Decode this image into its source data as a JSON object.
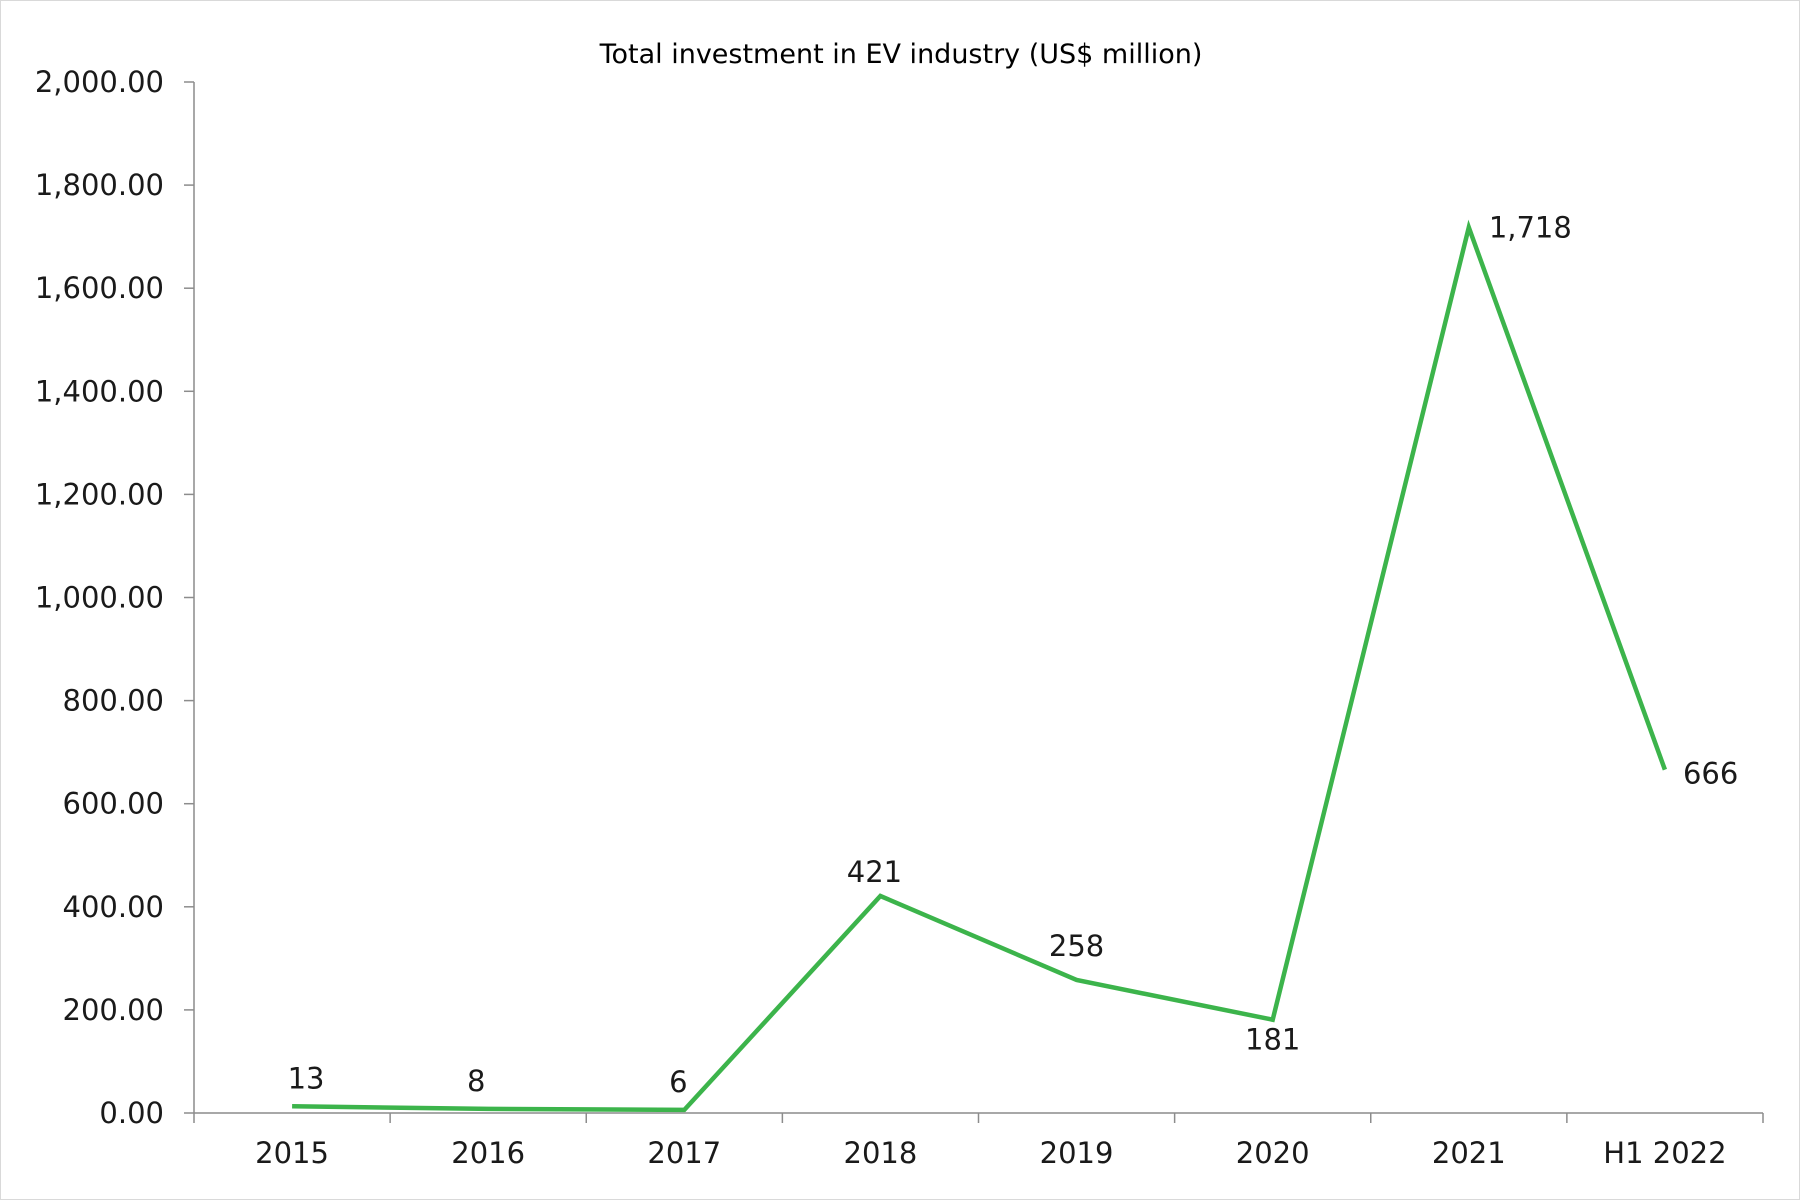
{
  "chart_data": {
    "type": "line",
    "title": "Total investment in EV industry (US$ million)",
    "xlabel": "",
    "ylabel": "",
    "categories": [
      "2015",
      "2016",
      "2017",
      "2018",
      "2019",
      "2020",
      "2021",
      "H1 2022"
    ],
    "series": [
      {
        "values": [
          13,
          8,
          6,
          421,
          258,
          181,
          1718,
          666
        ],
        "data_labels": [
          "13",
          "8",
          "6",
          "421",
          "258",
          "181",
          "1,718",
          "666"
        ]
      }
    ],
    "ylim": [
      0,
      2000
    ],
    "yticks": [
      0,
      200,
      400,
      600,
      800,
      1000,
      1200,
      1400,
      1600,
      1800,
      2000
    ],
    "ytick_labels": [
      "0.00",
      "200.00",
      "400.00",
      "600.00",
      "800.00",
      "1,000.00",
      "1,200.00",
      "1,400.00",
      "1,600.00",
      "1,800.00",
      "2,000.00"
    ],
    "grid": false,
    "legend": "none",
    "line_color": "#3cb44b"
  }
}
